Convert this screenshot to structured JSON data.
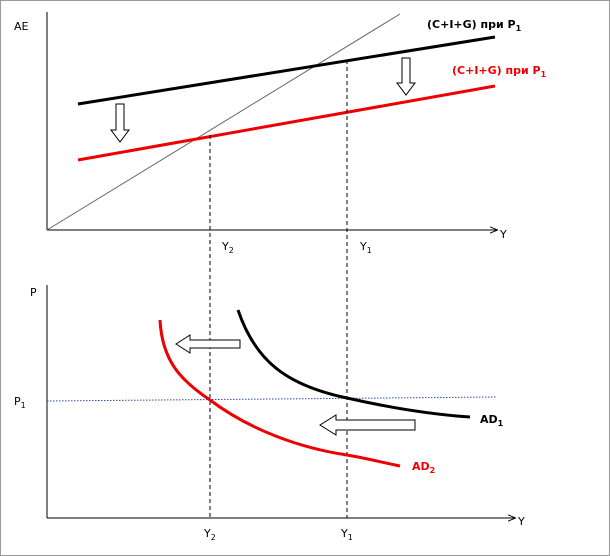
{
  "top_panel": {
    "y_axis_label": "AE",
    "x_axis_label": "Y",
    "curve_before": {
      "main": "(C+I+G) при P",
      "sub": "1"
    },
    "curve_after": {
      "main": "(C+I+G) при P",
      "sub": "1"
    },
    "y2_label": {
      "main": "Y",
      "sub": "2"
    },
    "y1_label": {
      "main": "Y",
      "sub": "1"
    }
  },
  "bottom_panel": {
    "y_axis_label": "P",
    "x_axis_label": "Y",
    "p1_label": {
      "main": "P",
      "sub": "1"
    },
    "ad1_label": {
      "main": "AD",
      "sub": "1"
    },
    "ad2_label": {
      "main": "AD",
      "sub": "2"
    },
    "y2_label": {
      "main": "Y",
      "sub": "2"
    },
    "y1_label": {
      "main": "Y",
      "sub": "1"
    }
  }
}
